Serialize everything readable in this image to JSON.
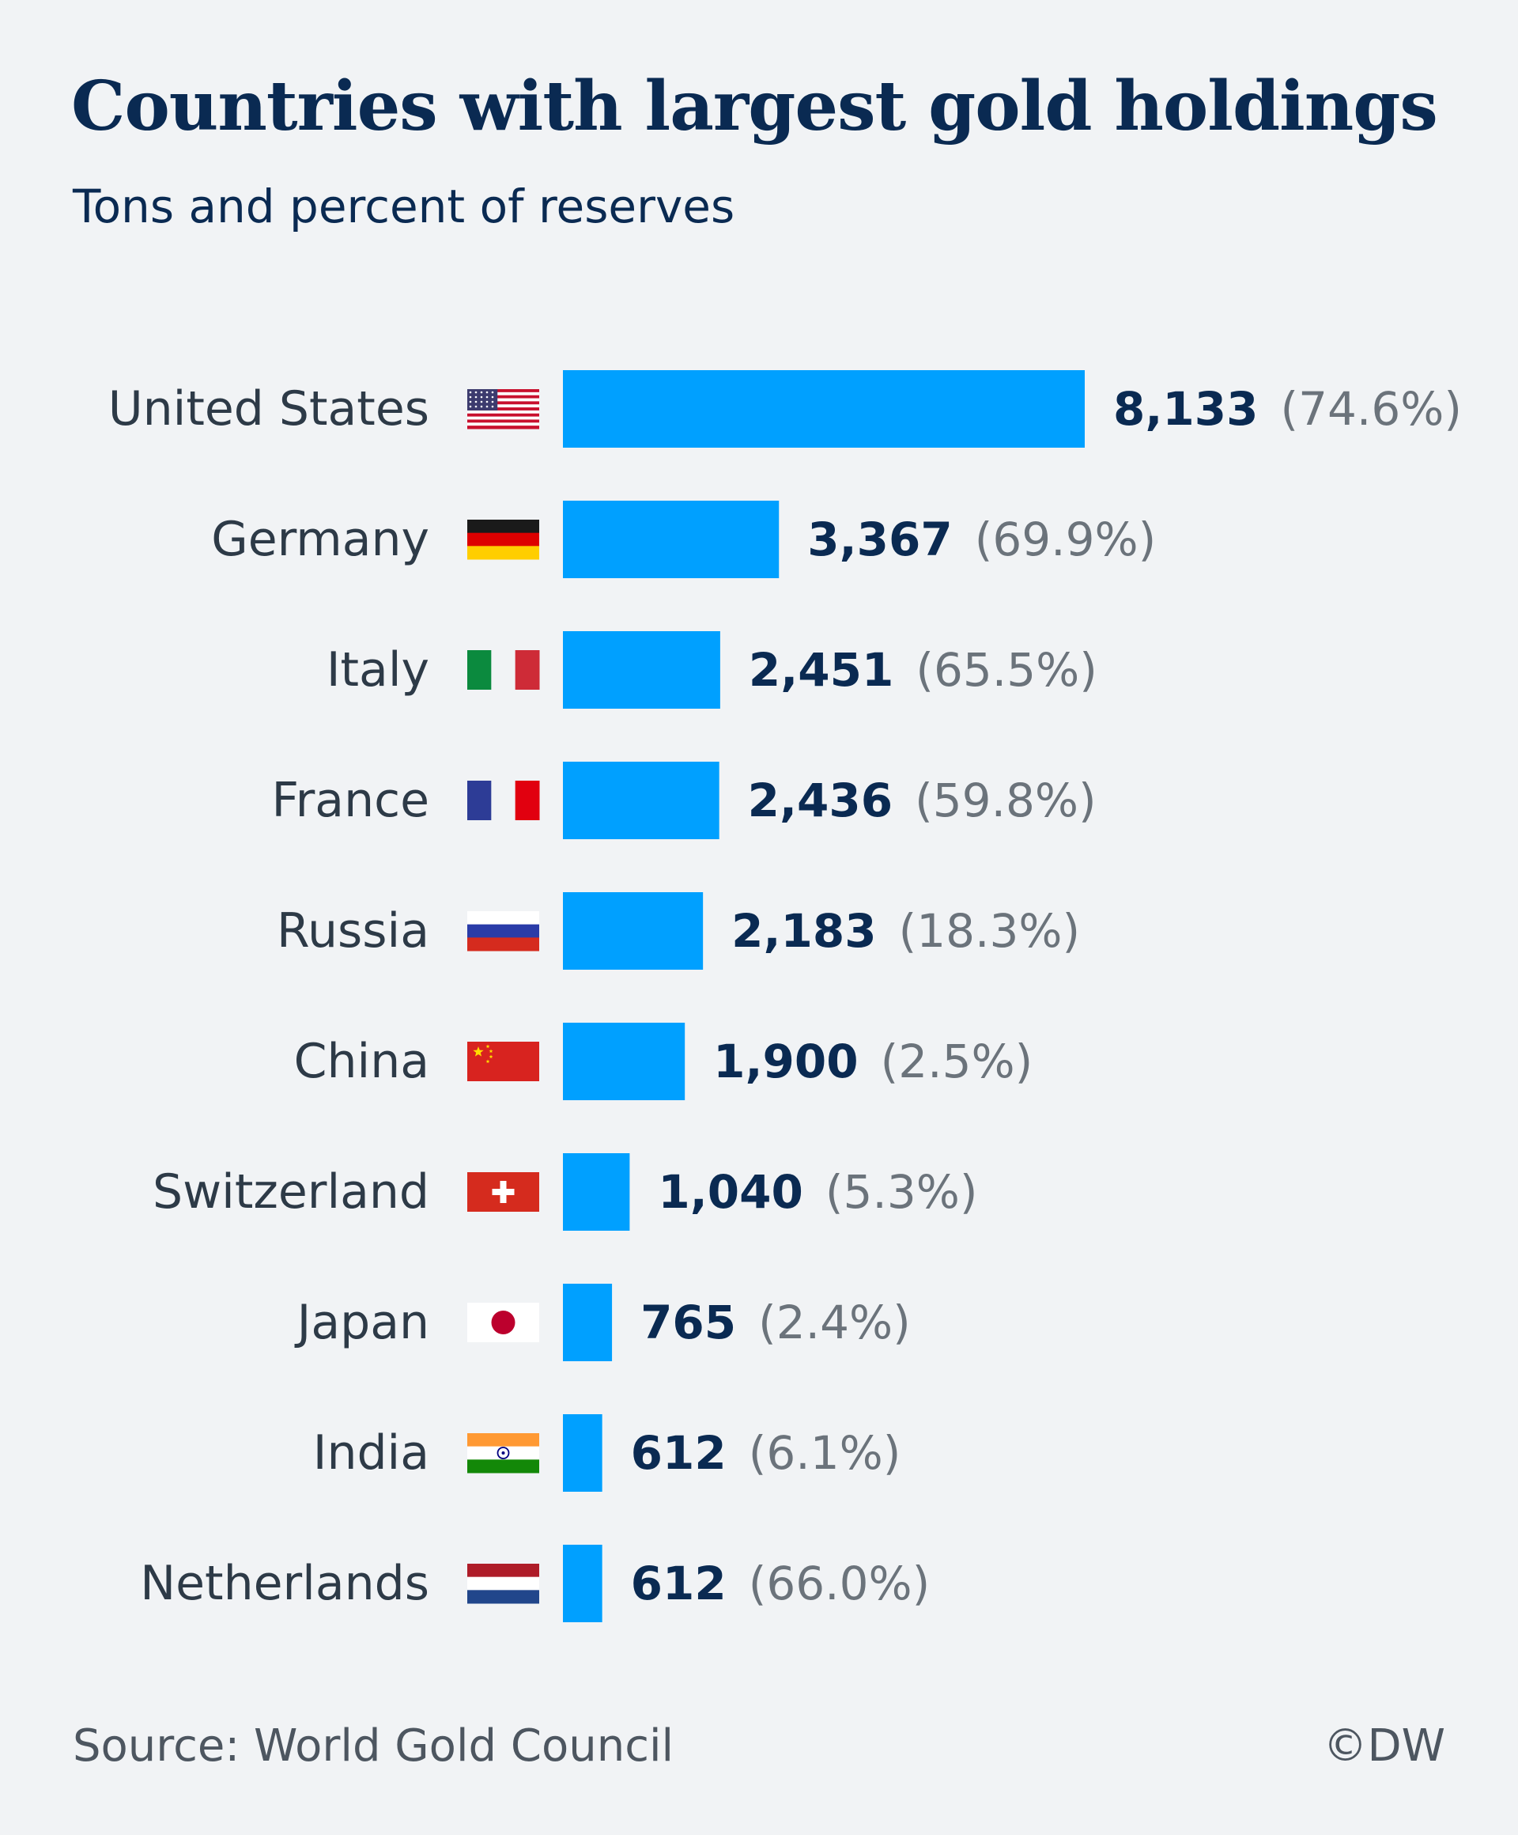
{
  "chart_data": {
    "type": "bar",
    "orientation": "horizontal",
    "title": "Countries with largest gold holdings",
    "subtitle": "Tons and percent of reserves",
    "categories": [
      "United States",
      "Germany",
      "Italy",
      "France",
      "Russia",
      "China",
      "Switzerland",
      "Japan",
      "India",
      "Netherlands"
    ],
    "values": [
      8133,
      3367,
      2451,
      2436,
      2183,
      1900,
      1040,
      765,
      612,
      612
    ],
    "value_labels": [
      "8,133",
      "3,367",
      "2,451",
      "2,436",
      "2,183",
      "1,900",
      "1,040",
      "765",
      "612",
      "612"
    ],
    "percent_labels": [
      "(74.6%)",
      "(69.9%)",
      "(65.5%)",
      "(59.8%)",
      "(18.3%)",
      "(2.5%)",
      "(5.3%)",
      "(2.4%)",
      "(6.1%)",
      "(66.0%)"
    ],
    "flag_icons": [
      "us-flag-icon",
      "germany-flag-icon",
      "italy-flag-icon",
      "france-flag-icon",
      "russia-flag-icon",
      "china-flag-icon",
      "switzerland-flag-icon",
      "japan-flag-icon",
      "india-flag-icon",
      "netherlands-flag-icon"
    ],
    "bar_color": "#00a0ff",
    "grid": false,
    "legend": "none"
  },
  "source": "Source: World Gold Council",
  "credit": "©DW",
  "colors": {
    "background": "#f1f3f5",
    "title": "#0a2a52",
    "value_text": "#0a2a52",
    "percent_text": "#6b737b",
    "label_text": "#2d3a47"
  }
}
